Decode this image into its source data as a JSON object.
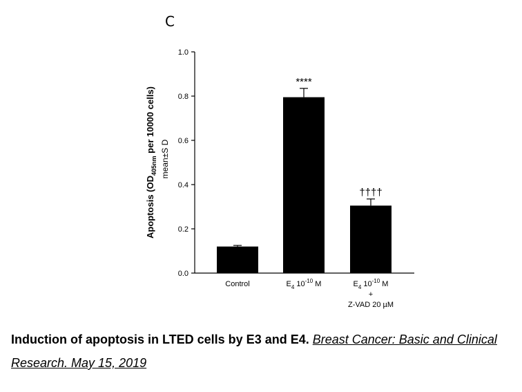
{
  "chart_data": {
    "type": "bar",
    "panel_label": "C",
    "categories": [
      {
        "line1_main": "Control",
        "line1_sub": "",
        "line1_sup": "",
        "line1_tail": "",
        "line2": "",
        "line3": ""
      },
      {
        "line1_main": "E",
        "line1_sub": "4",
        "line1_sup": "-10",
        "line1_tail": "M",
        "line1_mid": " 10",
        "line2": "",
        "line3": ""
      },
      {
        "line1_main": "E",
        "line1_sub": "4",
        "line1_sup": "-10",
        "line1_tail": "M",
        "line1_mid": " 10",
        "line2": "+",
        "line3": "Z-VAD 20 µM"
      }
    ],
    "values": [
      0.12,
      0.795,
      0.305
    ],
    "errors": [
      0.005,
      0.04,
      0.03
    ],
    "annotations": [
      "",
      "****",
      "††††"
    ],
    "ylabel_main": "Apoptosis (OD",
    "ylabel_sub": "405nm",
    "ylabel_tail": " per 10000 cells)",
    "ylabel_line2": "mean±S D",
    "ylim": [
      0,
      1.0
    ],
    "yticks": [
      "0.0",
      "0.2",
      "0.4",
      "0.6",
      "0.8",
      "1.0"
    ],
    "ytick_values": [
      0,
      0.2,
      0.4,
      0.6,
      0.8,
      1.0
    ],
    "bar_color": "#000000",
    "grid": false
  },
  "caption": {
    "bold_text": "Induction of apoptosis in LTED cells by E3 and E4.",
    "link_text": "Breast Cancer: Basic and Clinical Research. May 15, 2019"
  }
}
